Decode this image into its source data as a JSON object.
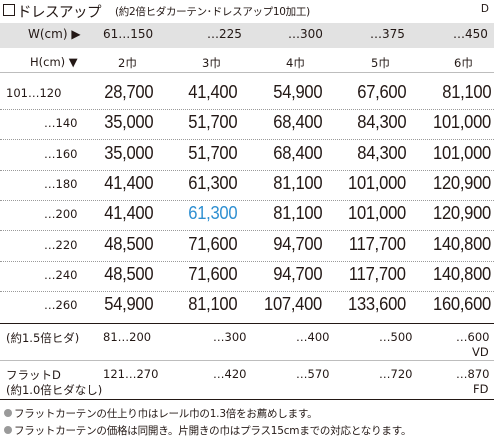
{
  "title": {
    "main": "ドレスアップ",
    "sub": "(約2倍ヒダカーテン･ドレスアップ10加工)",
    "code": "D"
  },
  "header": {
    "width_label": "W(cm) ▶",
    "height_label": "H(cm) ▼",
    "widths": [
      "61…150",
      "…225",
      "…300",
      "…375",
      "…450"
    ],
    "panels": [
      "2巾",
      "3巾",
      "4巾",
      "5巾",
      "6巾"
    ]
  },
  "rows": [
    {
      "h": "101…120",
      "prices": [
        "28,700",
        "41,400",
        "54,900",
        "67,600",
        "81,100"
      ]
    },
    {
      "h": "…140",
      "prices": [
        "35,000",
        "51,700",
        "68,400",
        "84,300",
        "101,000"
      ]
    },
    {
      "h": "…160",
      "prices": [
        "35,000",
        "51,700",
        "68,400",
        "84,300",
        "101,000"
      ]
    },
    {
      "h": "…180",
      "prices": [
        "41,400",
        "61,300",
        "81,100",
        "101,000",
        "120,900"
      ]
    },
    {
      "h": "…200",
      "prices": [
        "41,400",
        "61,300",
        "81,100",
        "101,000",
        "120,900"
      ]
    },
    {
      "h": "…220",
      "prices": [
        "48,500",
        "71,600",
        "94,700",
        "117,700",
        "140,800"
      ]
    },
    {
      "h": "…240",
      "prices": [
        "48,500",
        "71,600",
        "94,700",
        "117,700",
        "140,800"
      ]
    },
    {
      "h": "…260",
      "prices": [
        "54,900",
        "81,100",
        "107,400",
        "133,600",
        "160,600"
      ]
    }
  ],
  "highlight_color": "#2e8fd1",
  "vd_row": {
    "label": "(約1.5倍ヒダ)",
    "widths": [
      "81…200",
      "…300",
      "…400",
      "…500",
      "…600"
    ],
    "code": "VD"
  },
  "fd_row": {
    "label1": "フラットD",
    "label2": "(約1.0倍ヒダなし)",
    "widths": [
      "121…270",
      "…420",
      "…570",
      "…720",
      "…870"
    ],
    "code": "FD"
  },
  "notes": [
    "フラットカーテンの仕上り巾はレール巾の1.3倍をお薦めします。",
    "フラットカーテンの価格は同開き。片開きの巾はプラス15cmまでの対応となります。"
  ]
}
